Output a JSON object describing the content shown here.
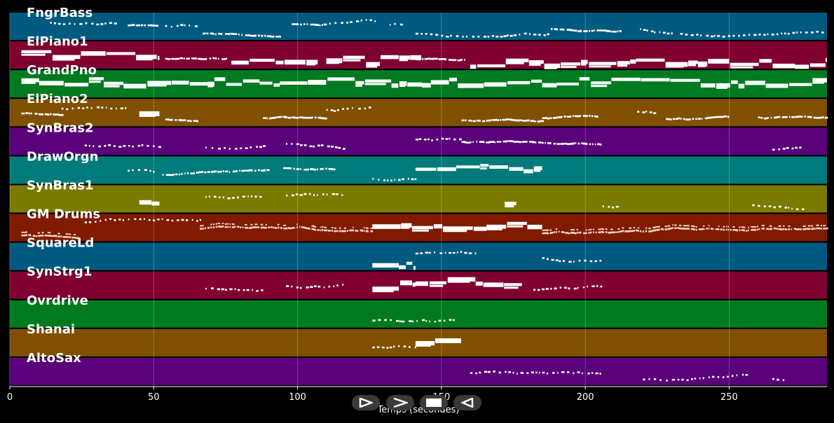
{
  "chart_data": {
    "type": "piano-roll",
    "xlabel": "Temps (secondes)",
    "xlim": [
      0,
      284
    ],
    "xticks": [
      0,
      50,
      100,
      150,
      200,
      250
    ],
    "tracks": [
      {
        "name": "FngrBass",
        "color": "#005a80",
        "segments": [
          [
            14,
            37,
            "light"
          ],
          [
            41,
            52,
            "dense"
          ],
          [
            54,
            66,
            "light"
          ],
          [
            67,
            94,
            "dense"
          ],
          [
            98,
            110,
            "dense"
          ],
          [
            111,
            128,
            "light"
          ],
          [
            132,
            137,
            "light"
          ],
          [
            141,
            188,
            "light"
          ],
          [
            188,
            212,
            "dense"
          ],
          [
            219,
            230,
            "light"
          ],
          [
            233,
            284,
            "light"
          ]
        ]
      },
      {
        "name": "ElPiano1",
        "color": "#800030",
        "segments": [
          [
            4,
            52,
            "block"
          ],
          [
            54,
            75,
            "dense"
          ],
          [
            77,
            107,
            "block"
          ],
          [
            110,
            143,
            "block"
          ],
          [
            141,
            158,
            "dense"
          ],
          [
            160,
            284,
            "block"
          ]
        ]
      },
      {
        "name": "GrandPno",
        "color": "#007a20",
        "segments": [
          [
            4,
            284,
            "block"
          ]
        ]
      },
      {
        "name": "ElPiano2",
        "color": "#805000",
        "segments": [
          [
            4,
            18,
            "dense"
          ],
          [
            18,
            40,
            "light"
          ],
          [
            45,
            52,
            "block"
          ],
          [
            54,
            66,
            "dense"
          ],
          [
            88,
            110,
            "dense"
          ],
          [
            110,
            126,
            "light"
          ],
          [
            157,
            185,
            "dense"
          ],
          [
            185,
            204,
            "dense"
          ],
          [
            218,
            225,
            "light"
          ],
          [
            228,
            250,
            "dense"
          ],
          [
            260,
            284,
            "dense"
          ]
        ]
      },
      {
        "name": "SynBras2",
        "color": "#5a007a",
        "segments": [
          [
            26,
            52,
            "light"
          ],
          [
            68,
            88,
            "light"
          ],
          [
            96,
            116,
            "light"
          ],
          [
            141,
            157,
            "light"
          ],
          [
            157,
            205,
            "dense"
          ],
          [
            265,
            276,
            "light"
          ]
        ]
      },
      {
        "name": "DrawOrgn",
        "color": "#007a7a",
        "segments": [
          [
            41,
            50,
            "light"
          ],
          [
            53,
            90,
            "dense"
          ],
          [
            95,
            112,
            "dense"
          ],
          [
            126,
            141,
            "light"
          ],
          [
            141,
            185,
            "block"
          ]
        ]
      },
      {
        "name": "SynBras1",
        "color": "#7a7a00",
        "segments": [
          [
            45,
            52,
            "block"
          ],
          [
            68,
            88,
            "light"
          ],
          [
            96,
            116,
            "light"
          ],
          [
            172,
            176,
            "block"
          ],
          [
            206,
            211,
            "light"
          ],
          [
            258,
            276,
            "light"
          ]
        ]
      },
      {
        "name": "GM Drums",
        "color": "#801a00",
        "segments": [
          [
            4,
            24,
            "drum"
          ],
          [
            26,
            66,
            "light"
          ],
          [
            66,
            126,
            "drum"
          ],
          [
            126,
            185,
            "block"
          ],
          [
            185,
            284,
            "drum"
          ]
        ]
      },
      {
        "name": "SquareLd",
        "color": "#005a80",
        "segments": [
          [
            126,
            141,
            "block"
          ],
          [
            141,
            163,
            "light"
          ],
          [
            185,
            206,
            "light"
          ]
        ]
      },
      {
        "name": "SynStrg1",
        "color": "#800030",
        "segments": [
          [
            68,
            88,
            "light"
          ],
          [
            96,
            116,
            "light"
          ],
          [
            126,
            141,
            "block"
          ],
          [
            141,
            178,
            "block"
          ],
          [
            182,
            206,
            "light"
          ]
        ]
      },
      {
        "name": "Ovrdrive",
        "color": "#007a20",
        "segments": [
          [
            126,
            155,
            "light"
          ]
        ]
      },
      {
        "name": "Shanai",
        "color": "#805000",
        "segments": [
          [
            126,
            141,
            "light"
          ],
          [
            141,
            157,
            "block"
          ]
        ]
      },
      {
        "name": "AltoSax",
        "color": "#5a007a",
        "segments": [
          [
            160,
            205,
            "light"
          ],
          [
            220,
            256,
            "light"
          ],
          [
            265,
            270,
            "light"
          ]
        ]
      }
    ]
  },
  "controls": [
    {
      "name": "play-button",
      "icon": "play-outline-icon"
    },
    {
      "name": "forward-button",
      "icon": "chevron-right-icon"
    },
    {
      "name": "stop-button",
      "icon": "stop-icon"
    },
    {
      "name": "rewind-button",
      "icon": "rewind-icon"
    }
  ]
}
